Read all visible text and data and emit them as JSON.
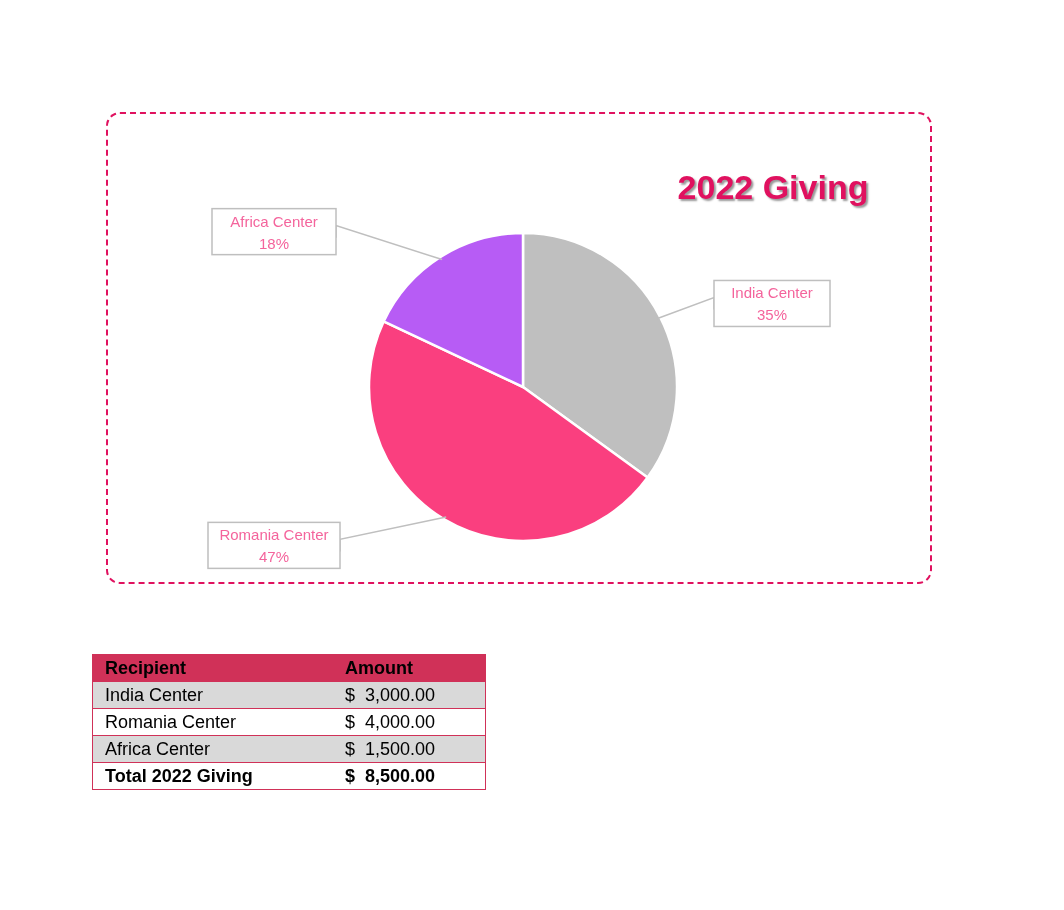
{
  "chart_data": {
    "type": "pie",
    "title": "2022 Giving",
    "categories": [
      "India Center",
      "Romania Center",
      "Africa Center"
    ],
    "values": [
      35,
      47,
      18
    ],
    "colors": [
      "#bfbfbf",
      "#fa3f7f",
      "#b75cf5"
    ],
    "value_labels": [
      "35%",
      "47%",
      "18%"
    ],
    "annotations": [
      "Recipient",
      "Amount",
      "$  3,000.00",
      "$  4,000.00",
      "$  1,500.00",
      "Total 2022 Giving",
      "$  8,500.00"
    ]
  }
}
